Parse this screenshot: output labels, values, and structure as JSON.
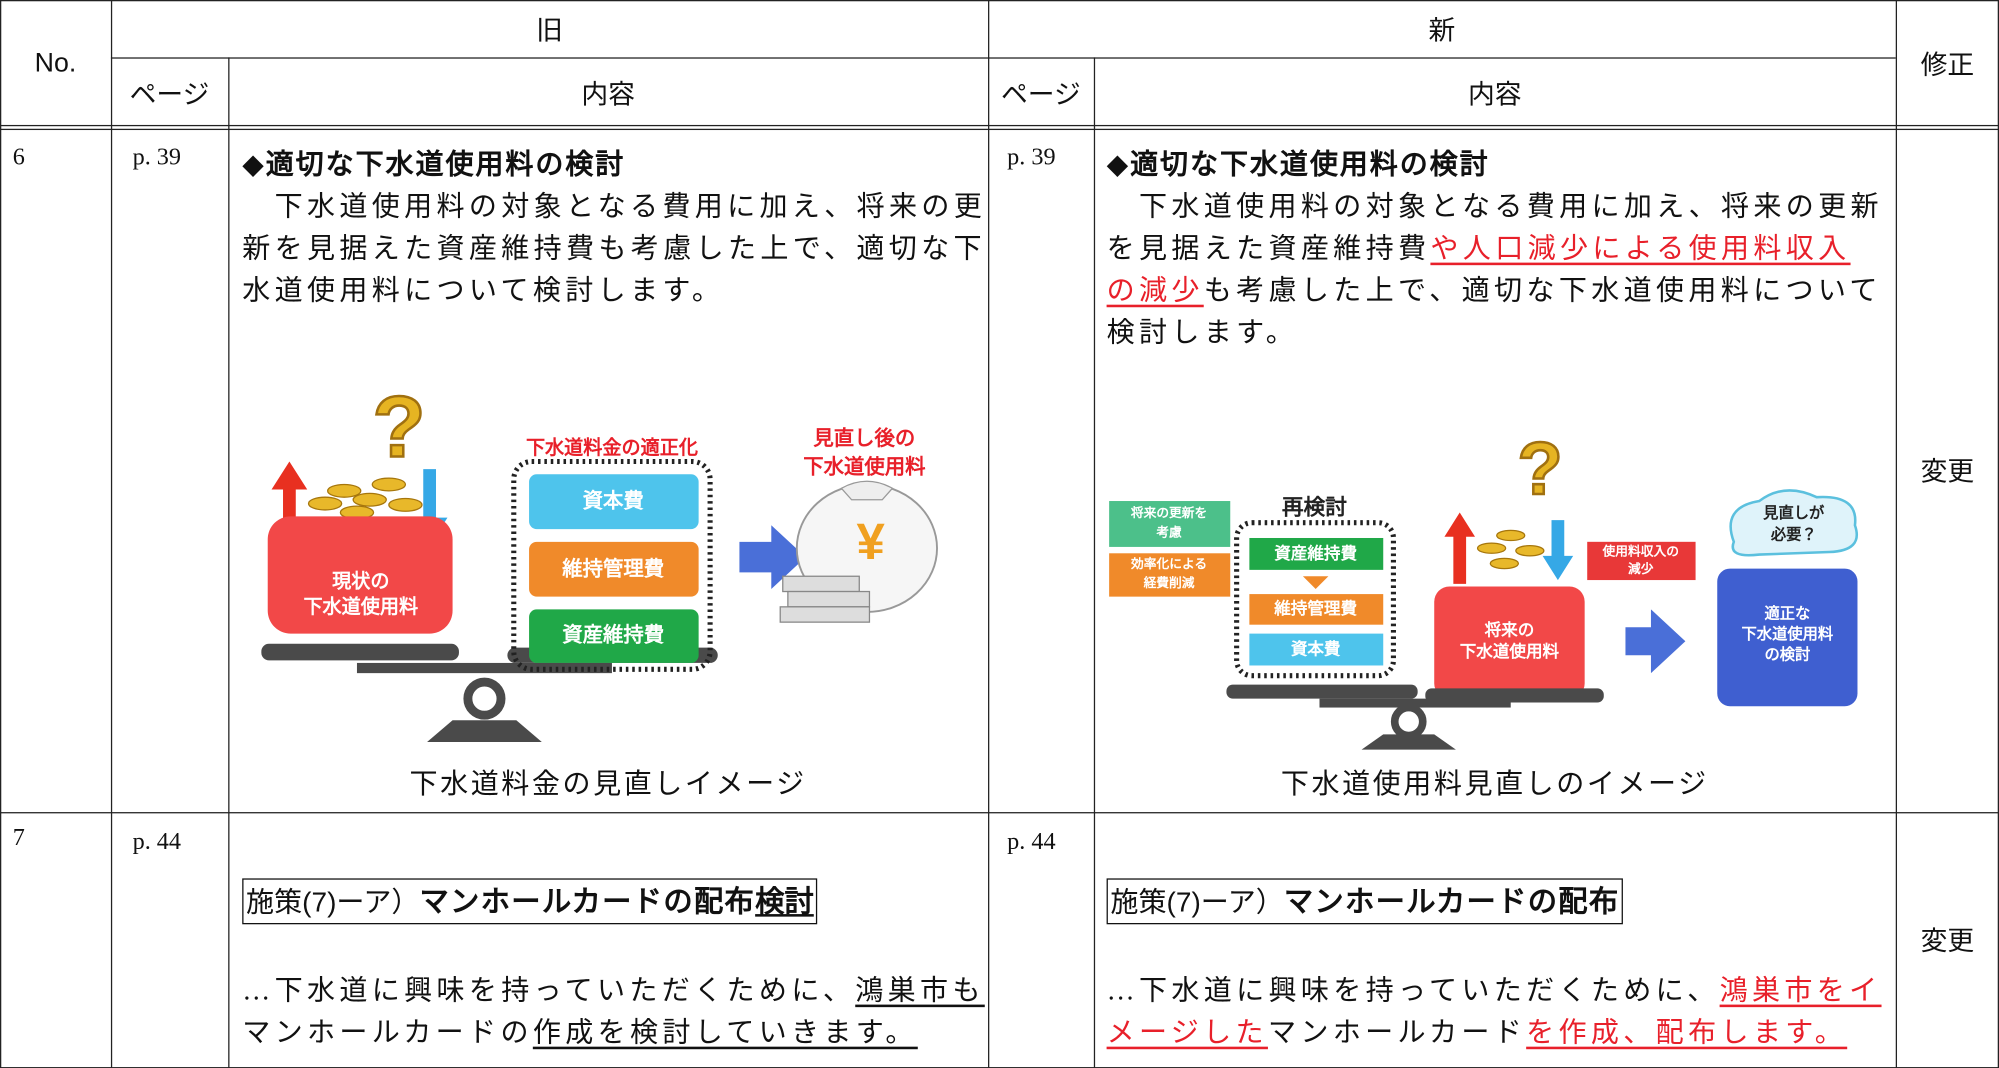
{
  "header": {
    "no": "No.",
    "old": "旧",
    "new": "新",
    "fix": "修正",
    "old_page": "ページ",
    "old_content": "内容",
    "new_page": "ページ",
    "new_content": "内容"
  },
  "rows": [
    {
      "no": "6",
      "old_page": "p. 39",
      "new_page": "p. 39",
      "fix": "変更",
      "old_content": [
        {
          "segments": [
            {
              "text": "◆適切な下水道使用料の検討",
              "style": "bold"
            }
          ]
        },
        {
          "segments": [
            {
              "text": "　下水道使用料の対象となる費用に加え、将来の更",
              "style": "plain"
            }
          ]
        },
        {
          "segments": [
            {
              "text": "新を見据えた資産維持費も考慮した上で、適切な下",
              "style": "plain"
            }
          ]
        },
        {
          "segments": [
            {
              "text": "水道使用料について検討します。",
              "style": "plain"
            }
          ]
        }
      ],
      "new_content": [
        {
          "segments": [
            {
              "text": "◆適切な下水道使用料の検討",
              "style": "bold"
            }
          ]
        },
        {
          "segments": [
            {
              "text": "　下水道使用料の対象となる費用に加え、将来の更新",
              "style": "plain"
            }
          ]
        },
        {
          "segments": [
            {
              "text": "を見据えた資産維持費",
              "style": "plain"
            },
            {
              "text": "や人口減少による使用料収入",
              "style": "red-underline"
            }
          ]
        },
        {
          "segments": [
            {
              "text": "の減少",
              "style": "red-underline"
            },
            {
              "text": "も考慮した上で、適切な下水道使用料について",
              "style": "plain"
            }
          ]
        },
        {
          "segments": [
            {
              "text": "検討します。",
              "style": "plain"
            }
          ]
        }
      ],
      "old_figure": {
        "question": "?",
        "title": "下水道料金の適正化",
        "result": [
          "見直し後の",
          "下水道使用料"
        ],
        "current": [
          "現状の",
          "下水道使用料"
        ],
        "cost1": "資本費",
        "cost2": "維持管理費",
        "cost3": "資産維持費",
        "yen": "¥"
      },
      "old_caption": "下水道料金の見直しイメージ",
      "new_figure": {
        "question": "?",
        "note1": [
          "将来の更新を",
          "考慮"
        ],
        "note2": [
          "効率化による",
          "経費削減"
        ],
        "title": "再検討",
        "cost1": "資産維持費",
        "cost2": "維持管理費",
        "cost3": "資本費",
        "decline": [
          "使用料収入の",
          "減少"
        ],
        "future": [
          "将来の",
          "下水道使用料"
        ],
        "bubble": [
          "見直しが",
          "必要？"
        ],
        "result": [
          "適正な",
          "下水道使用料",
          "の検討"
        ]
      },
      "new_caption": "下水道使用料見直しのイメージ"
    },
    {
      "no": "7",
      "old_page": "p. 44",
      "new_page": "p. 44",
      "fix": "変更",
      "old_content": [
        {
          "box": true,
          "segments": [
            {
              "text": "施策(7)ーア）",
              "style": "plain-sans"
            },
            {
              "text": "マンホールカードの配布",
              "style": "bold"
            },
            {
              "text": "検討",
              "style": "bold-underline"
            }
          ]
        },
        {
          "segments": [
            {
              "text": "…下水道に興味を持っていただくために、",
              "style": "plain"
            },
            {
              "text": "鴻巣市も",
              "style": "underline"
            }
          ]
        },
        {
          "segments": [
            {
              "text": "マンホールカードの",
              "style": "plain"
            },
            {
              "text": "作成を検討していきます。",
              "style": "underline"
            }
          ]
        }
      ],
      "new_content": [
        {
          "box": true,
          "segments": [
            {
              "text": "施策(7)ーア）",
              "style": "plain-sans"
            },
            {
              "text": "マンホールカードの配布",
              "style": "bold"
            }
          ]
        },
        {
          "segments": [
            {
              "text": "…下水道に興味を持っていただくために、",
              "style": "plain"
            },
            {
              "text": "鴻巣市をイ",
              "style": "red-underline"
            }
          ]
        },
        {
          "segments": [
            {
              "text": "メージした",
              "style": "red-underline"
            },
            {
              "text": "マンホールカード",
              "style": "plain"
            },
            {
              "text": "を作成、配布します。",
              "style": "red-underline"
            }
          ]
        }
      ]
    }
  ]
}
